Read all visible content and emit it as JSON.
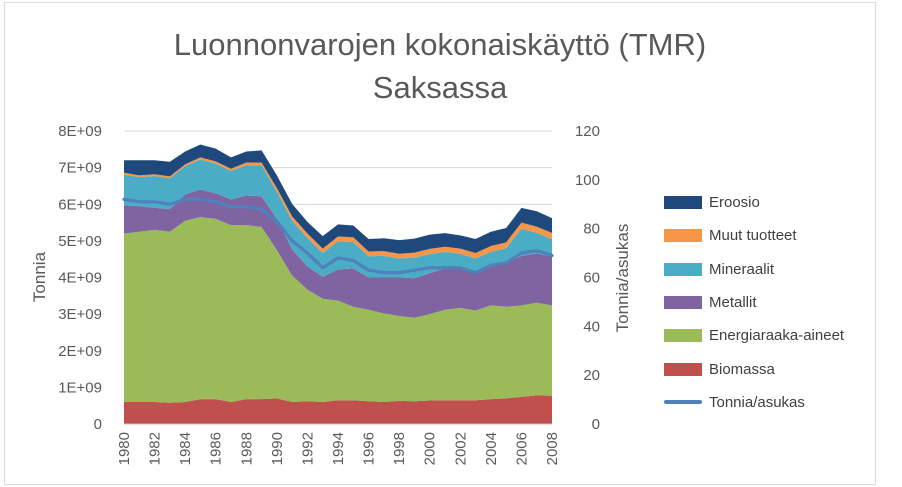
{
  "chart_data": {
    "type": "area",
    "title_line1": "Luonnonvarojen kokonaiskäyttö (TMR)",
    "title_line2": "Saksassa",
    "ylabel": "Tonnia",
    "y2label": "Tonnia/asukas",
    "ylim": [
      0,
      8000000000
    ],
    "y2lim": [
      0,
      120
    ],
    "y_ticks": [
      "0",
      "1E+09",
      "2E+09",
      "3E+09",
      "4E+09",
      "5E+09",
      "6E+09",
      "7E+09",
      "8E+09"
    ],
    "y2_ticks": [
      "0",
      "20",
      "40",
      "60",
      "80",
      "100",
      "120"
    ],
    "x_tick_labels": [
      "1980",
      "1982",
      "1984",
      "1986",
      "1988",
      "1990",
      "1992",
      "1994",
      "1996",
      "1998",
      "2000",
      "2002",
      "2004",
      "2006",
      "2008"
    ],
    "x": [
      1980,
      1981,
      1982,
      1983,
      1984,
      1985,
      1986,
      1987,
      1988,
      1989,
      1990,
      1991,
      1992,
      1993,
      1994,
      1995,
      1996,
      1997,
      1998,
      1999,
      2000,
      2001,
      2002,
      2003,
      2004,
      2005,
      2006,
      2007,
      2008
    ],
    "stacked": true,
    "series": [
      {
        "name": "Biomassa",
        "color": "#c0504d",
        "values": [
          600000000.0,
          600000000.0,
          600000000.0,
          580000000.0,
          600000000.0,
          680000000.0,
          680000000.0,
          600000000.0,
          680000000.0,
          680000000.0,
          700000000.0,
          600000000.0,
          620000000.0,
          600000000.0,
          650000000.0,
          650000000.0,
          620000000.0,
          600000000.0,
          630000000.0,
          620000000.0,
          640000000.0,
          650000000.0,
          650000000.0,
          650000000.0,
          680000000.0,
          700000000.0,
          740000000.0,
          780000000.0,
          770000000.0
        ]
      },
      {
        "name": "Energiaraaka-aineet",
        "color": "#9bbb59",
        "values": [
          4600000000.0,
          4650000000.0,
          4700000000.0,
          4670000000.0,
          4950000000.0,
          4970000000.0,
          4920000000.0,
          4830000000.0,
          4750000000.0,
          4700000000.0,
          4050000000.0,
          3450000000.0,
          3050000000.0,
          2820000000.0,
          2720000000.0,
          2550000000.0,
          2500000000.0,
          2420000000.0,
          2320000000.0,
          2280000000.0,
          2360000000.0,
          2470000000.0,
          2520000000.0,
          2450000000.0,
          2560000000.0,
          2500000000.0,
          2500000000.0,
          2530000000.0,
          2470000000.0
        ]
      },
      {
        "name": "Metallit",
        "color": "#8064a2",
        "values": [
          770000000.0,
          700000000.0,
          600000000.0,
          620000000.0,
          720000000.0,
          750000000.0,
          700000000.0,
          700000000.0,
          810000000.0,
          840000000.0,
          850000000.0,
          720000000.0,
          630000000.0,
          600000000.0,
          850000000.0,
          1050000000.0,
          880000000.0,
          980000000.0,
          1050000000.0,
          1080000000.0,
          1120000000.0,
          1130000000.0,
          1130000000.0,
          1050000000.0,
          1060000000.0,
          1200000000.0,
          1350000000.0,
          1350000000.0,
          1330000000.0
        ]
      },
      {
        "name": "Mineraalit",
        "color": "#4bacc6",
        "values": [
          840000000.0,
          790000000.0,
          870000000.0,
          840000000.0,
          770000000.0,
          820000000.0,
          810000000.0,
          780000000.0,
          820000000.0,
          840000000.0,
          740000000.0,
          780000000.0,
          780000000.0,
          650000000.0,
          770000000.0,
          720000000.0,
          580000000.0,
          590000000.0,
          520000000.0,
          560000000.0,
          520000000.0,
          450000000.0,
          350000000.0,
          370000000.0,
          400000000.0,
          400000000.0,
          740000000.0,
          560000000.0,
          480000000.0
        ]
      },
      {
        "name": "Muut tuotteet",
        "color": "#f79646",
        "values": [
          50000000.0,
          50000000.0,
          50000000.0,
          50000000.0,
          50000000.0,
          60000000.0,
          60000000.0,
          60000000.0,
          80000000.0,
          80000000.0,
          100000000.0,
          120000000.0,
          120000000.0,
          120000000.0,
          130000000.0,
          130000000.0,
          130000000.0,
          130000000.0,
          130000000.0,
          140000000.0,
          140000000.0,
          140000000.0,
          140000000.0,
          150000000.0,
          160000000.0,
          160000000.0,
          170000000.0,
          170000000.0,
          170000000.0
        ]
      },
      {
        "name": "Eroosio",
        "color": "#1f497d",
        "values": [
          340000000.0,
          410000000.0,
          380000000.0,
          400000000.0,
          350000000.0,
          350000000.0,
          350000000.0,
          310000000.0,
          300000000.0,
          330000000.0,
          350000000.0,
          340000000.0,
          320000000.0,
          340000000.0,
          330000000.0,
          320000000.0,
          340000000.0,
          350000000.0,
          370000000.0,
          380000000.0,
          390000000.0,
          370000000.0,
          360000000.0,
          380000000.0,
          390000000.0,
          390000000.0,
          400000000.0,
          420000000.0,
          400000000.0
        ]
      },
      {
        "name": "Tonnia/asukas",
        "color": "#4f81bd",
        "type": "line",
        "axis": "secondary",
        "values": [
          92,
          91,
          91,
          90,
          92,
          92,
          91,
          89,
          89,
          88,
          83,
          75,
          70,
          64,
          68,
          67,
          63,
          62,
          62,
          63,
          64,
          64,
          64,
          62,
          65,
          66,
          70,
          71,
          69
        ]
      }
    ],
    "legend_order": [
      "Eroosio",
      "Muut tuotteet",
      "Mineraalit",
      "Metallit",
      "Energiaraaka-aineet",
      "Biomassa",
      "Tonnia/asukas"
    ],
    "legend_position": "right",
    "grid": true
  }
}
